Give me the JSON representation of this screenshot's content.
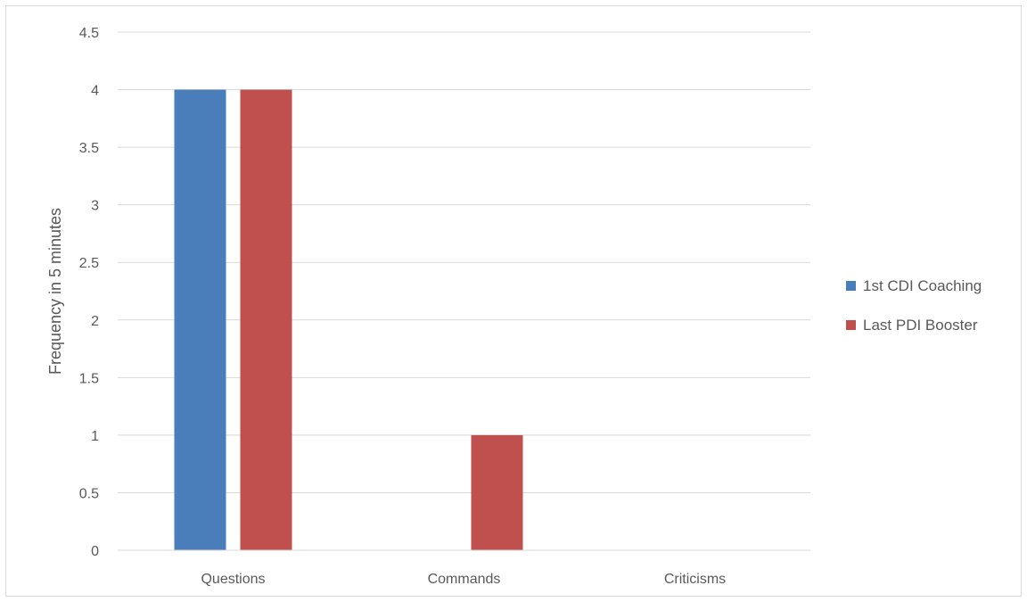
{
  "chart_data": {
    "type": "bar",
    "categories": [
      "Questions",
      "Commands",
      "Criticisms"
    ],
    "series": [
      {
        "name": "1st CDI Coaching",
        "values": [
          4,
          0,
          0
        ]
      },
      {
        "name": "Last PDI Booster",
        "values": [
          4,
          1,
          0
        ]
      }
    ],
    "title": "",
    "xlabel": "",
    "ylabel": "Frequency in 5 minutes",
    "ylim": [
      0,
      4.5
    ],
    "yticks": [
      "0",
      "0.5",
      "1",
      "1.5",
      "2",
      "2.5",
      "3",
      "3.5",
      "4",
      "4.5"
    ],
    "grid": true,
    "legend_position": "right",
    "colors": [
      "#4a7ebb",
      "#c0504d"
    ]
  }
}
